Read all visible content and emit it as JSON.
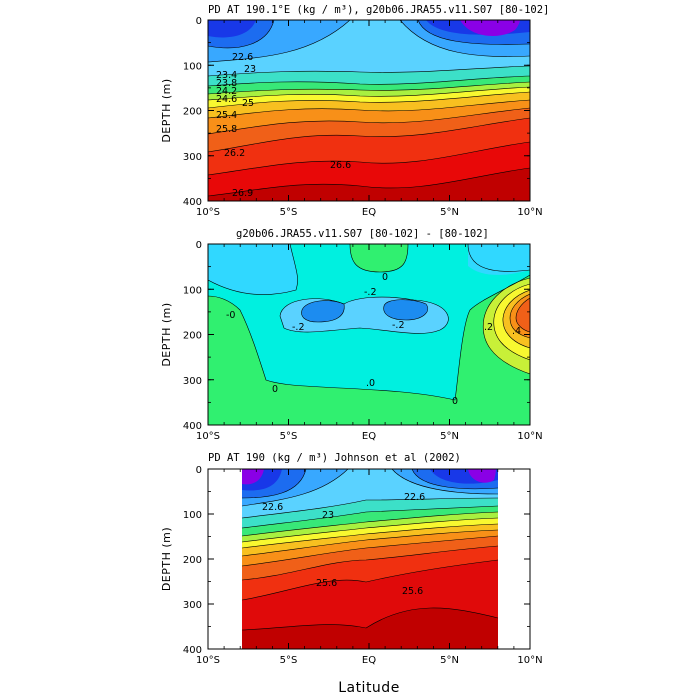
{
  "chart_data": [
    {
      "type": "contour",
      "title": "PD AT 190.1°E (kg / m³), g20b06.JRA55.v11.S07 [80-102]",
      "ylabel": "DEPTH (m)",
      "xlim": [
        -10,
        10
      ],
      "ylim": [
        400,
        0
      ],
      "x_ticks": [
        "10°S",
        "5°S",
        "EQ",
        "5°N",
        "10°N"
      ],
      "y_ticks": [
        "0",
        "100",
        "200",
        "300",
        "400"
      ],
      "contour_labels": [
        "22.6",
        "23",
        "23.4",
        "23.8",
        "24.2",
        "24.6",
        "25",
        "25.4",
        "25.8",
        "26.2",
        "26.6",
        "26.9"
      ],
      "colors": [
        "#8a00e6",
        "#1838e8",
        "#1c6cf0",
        "#38a8ff",
        "#5ad2ff",
        "#3ce0c8",
        "#38e878",
        "#a8f040",
        "#f8f830",
        "#f8c020",
        "#f89018",
        "#f06018",
        "#f03010",
        "#e80808",
        "#c80000"
      ]
    },
    {
      "type": "contour",
      "title": "g20b06.JRA55.v11.S07 [80-102] -  [80-102]",
      "ylabel": "DEPTH (m)",
      "xlim": [
        -10,
        10
      ],
      "ylim": [
        400,
        0
      ],
      "x_ticks": [
        "10°S",
        "5°S",
        "EQ",
        "5°N",
        "10°N"
      ],
      "y_ticks": [
        "0",
        "100",
        "200",
        "300",
        "400"
      ],
      "contour_labels": [
        "0",
        "-.2",
        ".2",
        ".4",
        "-.2",
        "-.2",
        "-0",
        "0",
        ".0",
        "0"
      ]
    },
    {
      "type": "contour",
      "title": "PD AT 190 (kg / m³) Johnson et al (2002)",
      "ylabel": "DEPTH (m)",
      "xlabel": "Latitude",
      "xlim": [
        -10,
        10
      ],
      "ylim": [
        400,
        0
      ],
      "x_ticks": [
        "10°S",
        "5°S",
        "EQ",
        "5°N",
        "10°N"
      ],
      "y_ticks": [
        "0",
        "100",
        "200",
        "300",
        "400"
      ],
      "data_extent_lat": [
        -8,
        8
      ],
      "contour_labels": [
        "22.6",
        "23",
        "22.6",
        "25.6",
        "25.6"
      ]
    }
  ]
}
